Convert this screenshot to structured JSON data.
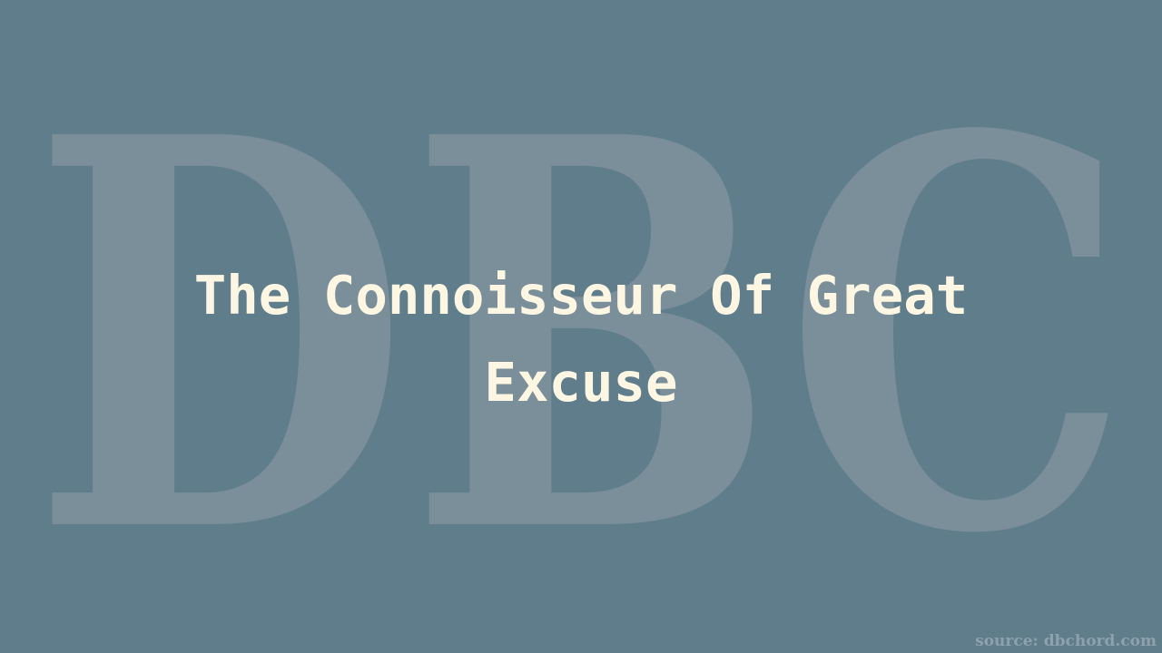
{
  "watermark": {
    "text": "DBC"
  },
  "title": "The Connoisseur Of Great Excuse",
  "source": "source: dbchord.com",
  "colors": {
    "background": "#607d8b",
    "watermark": "#7a8f9a",
    "title": "#fdf6e3",
    "source": "#8ea2ad"
  }
}
